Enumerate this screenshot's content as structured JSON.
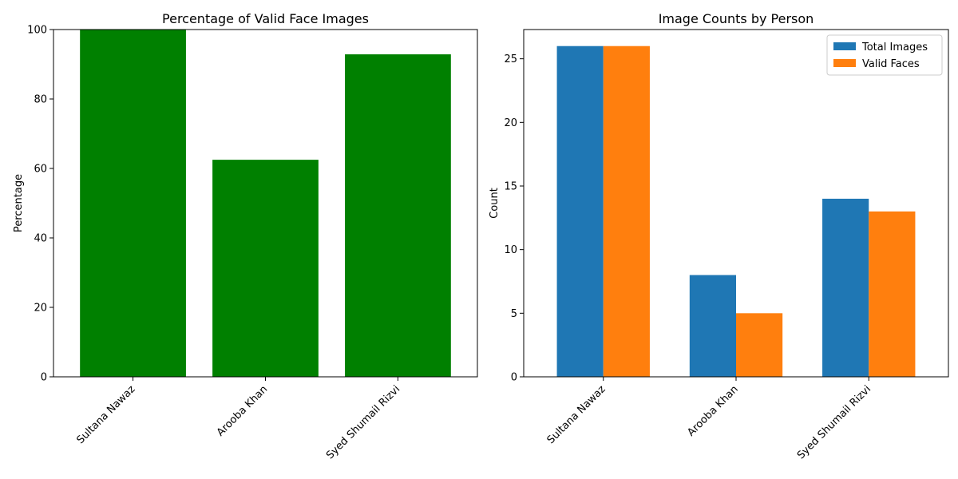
{
  "chart_data": [
    {
      "type": "bar",
      "title": "Percentage of Valid Face Images",
      "xlabel": "",
      "ylabel": "Percentage",
      "categories": [
        "Sultana Nawaz",
        "Arooba Khan",
        "Syed Shumail Rizvi"
      ],
      "values": [
        100,
        62.5,
        92.86
      ],
      "ylim": [
        0,
        100
      ],
      "yticks": [
        0,
        20,
        40,
        60,
        80,
        100
      ],
      "color": "#008000",
      "grid": false
    },
    {
      "type": "bar",
      "title": "Image Counts by Person",
      "xlabel": "",
      "ylabel": "Count",
      "categories": [
        "Sultana Nawaz",
        "Arooba Khan",
        "Syed Shumail Rizvi"
      ],
      "series": [
        {
          "name": "Total Images",
          "values": [
            26,
            8,
            14
          ],
          "color": "#1f77b4"
        },
        {
          "name": "Valid Faces",
          "values": [
            26,
            5,
            13
          ],
          "color": "#ff7f0e"
        }
      ],
      "ylim": [
        0,
        27.3
      ],
      "yticks": [
        0,
        5,
        10,
        15,
        20,
        25
      ],
      "legend": "top-right",
      "grid": false
    }
  ]
}
